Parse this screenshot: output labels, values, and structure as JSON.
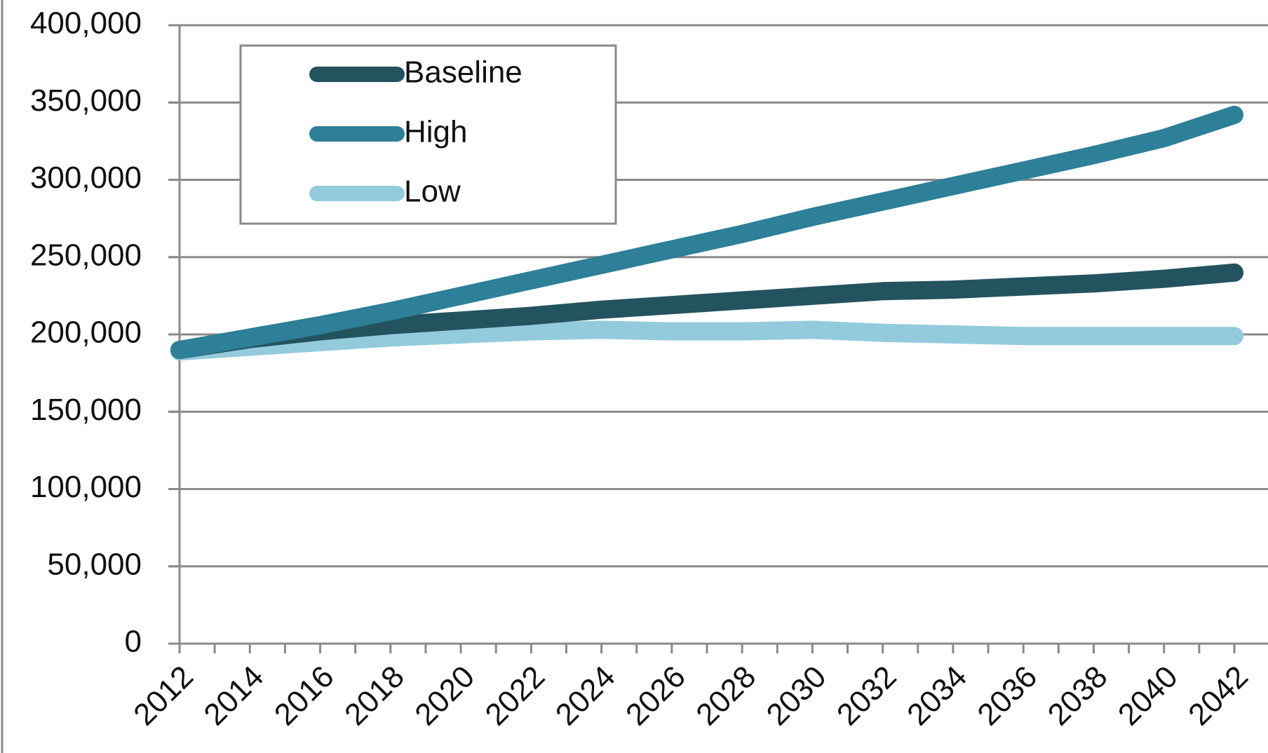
{
  "chart_data": {
    "type": "line",
    "x": [
      2012,
      2014,
      2016,
      2018,
      2020,
      2022,
      2024,
      2026,
      2028,
      2030,
      2032,
      2034,
      2036,
      2038,
      2040,
      2042
    ],
    "x_tick_labels": [
      "2012",
      "2014",
      "2016",
      "2018",
      "2020",
      "2022",
      "2024",
      "2026",
      "2028",
      "2030",
      "2032",
      "2034",
      "2036",
      "2038",
      "2040",
      "2042"
    ],
    "y_tick_values": [
      0,
      50000,
      100000,
      150000,
      200000,
      250000,
      300000,
      350000,
      400000
    ],
    "y_tick_labels": [
      "0",
      "50,000",
      "100,000",
      "150,000",
      "200,000",
      "250,000",
      "300,000",
      "350,000",
      "400,000"
    ],
    "ylim": [
      0,
      400000
    ],
    "grid": true,
    "legend_position": "top-left",
    "series": [
      {
        "name": "Baseline",
        "color": "#23535F",
        "values": [
          190000,
          197000,
          202000,
          206000,
          209000,
          212000,
          216000,
          219000,
          222000,
          225000,
          228000,
          229000,
          231000,
          233000,
          236000,
          240000
        ]
      },
      {
        "name": "High",
        "color": "#2E7F98",
        "values": [
          190000,
          198000,
          206000,
          215000,
          225000,
          235000,
          245000,
          255000,
          265000,
          276000,
          286000,
          296000,
          306000,
          316000,
          327000,
          342000
        ]
      },
      {
        "name": "Low",
        "color": "#93CBDD",
        "values": [
          189000,
          192000,
          195000,
          198000,
          200000,
          202000,
          203000,
          202000,
          202000,
          203000,
          201000,
          200000,
          199000,
          199000,
          199000,
          199000
        ]
      }
    ]
  }
}
